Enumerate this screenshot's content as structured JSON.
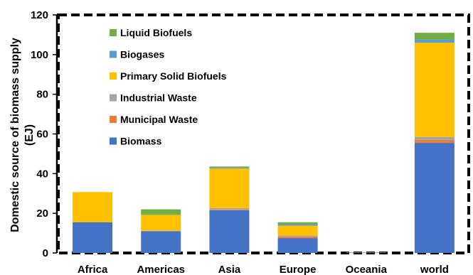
{
  "chart_data": {
    "type": "bar",
    "stacked": true,
    "categories": [
      "Africa",
      "Americas",
      "Asia",
      "Europe",
      "Oceania",
      "world"
    ],
    "ylabel_line1": "Domestic source of biomass supply",
    "ylabel_line2": "(EJ)",
    "ylim": [
      0,
      120
    ],
    "yticks": [
      0,
      20,
      40,
      60,
      80,
      100,
      120
    ],
    "grid": false,
    "legend_position": "top-left",
    "series": [
      {
        "name": "Biomass",
        "color": "#4472C4",
        "values": [
          15.5,
          11.0,
          21.5,
          7.5,
          0.2,
          55.5
        ]
      },
      {
        "name": "Municipal Waste",
        "color": "#ED7D31",
        "values": [
          0.0,
          0.0,
          0.3,
          0.8,
          0.0,
          1.5
        ]
      },
      {
        "name": "Industrial Waste",
        "color": "#A5A5A5",
        "values": [
          0.0,
          0.2,
          0.8,
          0.5,
          0.0,
          1.5
        ]
      },
      {
        "name": "Primary Solid Biofuels",
        "color": "#FFC000",
        "values": [
          15.2,
          8.0,
          20.0,
          5.0,
          0.1,
          47.5
        ]
      },
      {
        "name": "Biogases",
        "color": "#5B9BD5",
        "values": [
          0.0,
          0.0,
          0.5,
          0.7,
          0.0,
          1.5
        ]
      },
      {
        "name": "Liquid Biofuels",
        "color": "#70AD47",
        "values": [
          0.0,
          2.8,
          0.5,
          1.0,
          0.0,
          3.5
        ]
      }
    ]
  }
}
